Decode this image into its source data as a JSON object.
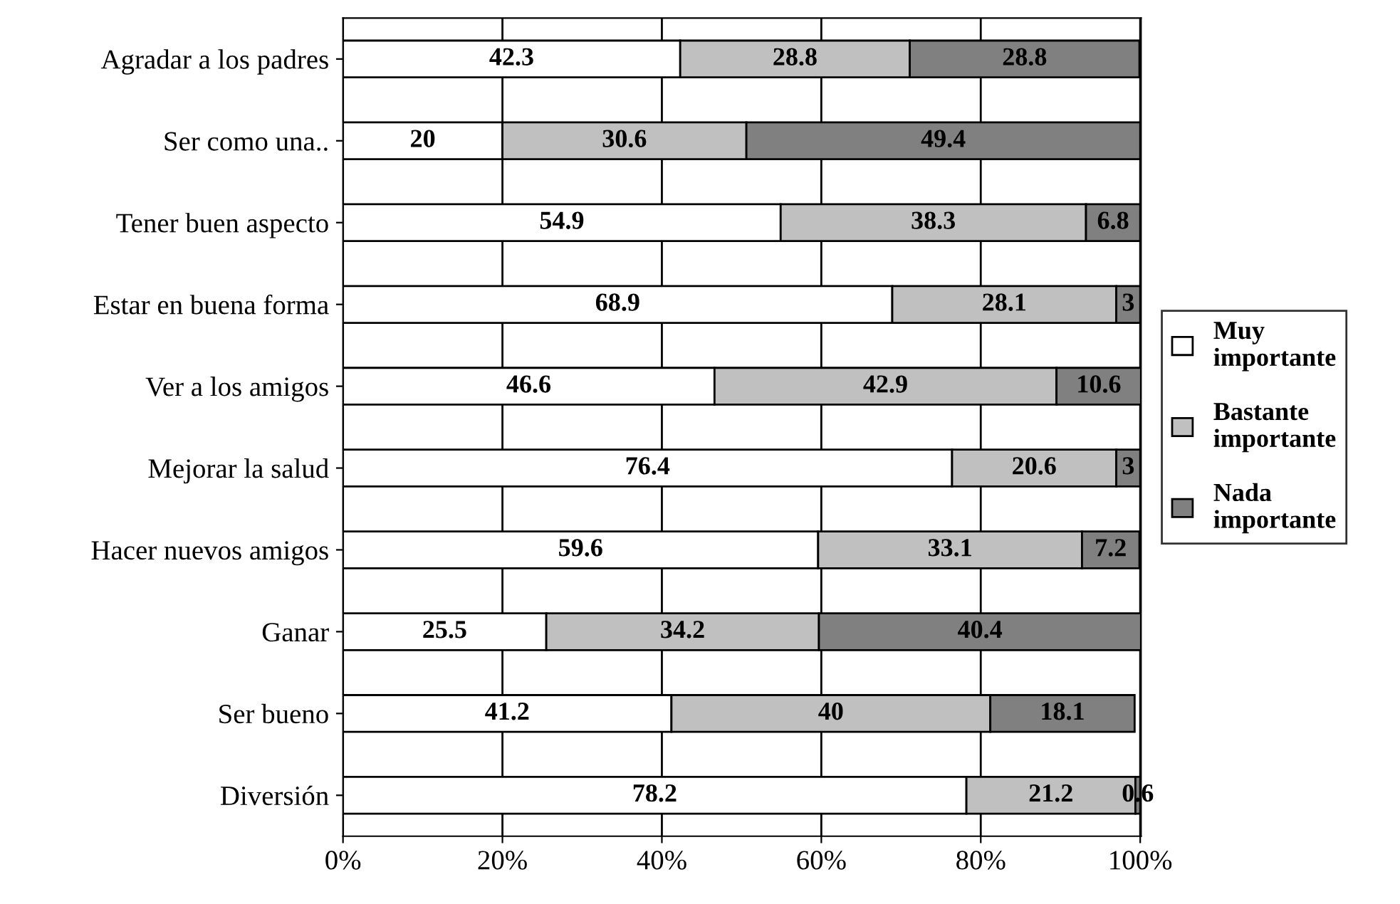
{
  "chart_data": {
    "type": "bar",
    "orientation": "horizontal",
    "stacked": true,
    "categories": [
      "Agradar a los padres",
      "Ser como una..",
      "Tener buen aspecto",
      "Estar en buena forma",
      "Ver a los amigos",
      "Mejorar la salud",
      "Hacer nuevos amigos",
      "Ganar",
      "Ser bueno",
      "Diversión"
    ],
    "series": [
      {
        "name": "Muy importante",
        "color": "#ffffff",
        "values": [
          42.3,
          20,
          54.9,
          68.9,
          46.6,
          76.4,
          59.6,
          25.5,
          41.2,
          78.2
        ]
      },
      {
        "name": "Bastante importante",
        "color": "#c0c0c0",
        "values": [
          28.8,
          30.6,
          38.3,
          28.1,
          42.9,
          20.6,
          33.1,
          34.2,
          40,
          21.2
        ]
      },
      {
        "name": "Nada importante",
        "color": "#808080",
        "values": [
          28.8,
          49.4,
          6.8,
          3,
          10.6,
          3,
          7.2,
          40.4,
          18.1,
          0.6
        ]
      }
    ],
    "xlim": [
      0,
      100.1
    ],
    "xticks": [
      {
        "value": 0,
        "label": "0%"
      },
      {
        "value": 20,
        "label": "20%"
      },
      {
        "value": 40,
        "label": "40%"
      },
      {
        "value": 60,
        "label": "60%"
      },
      {
        "value": 80,
        "label": "80%"
      },
      {
        "value": 100,
        "label": "100%"
      }
    ],
    "data_labels": true,
    "grid": "x",
    "legend": "right"
  }
}
